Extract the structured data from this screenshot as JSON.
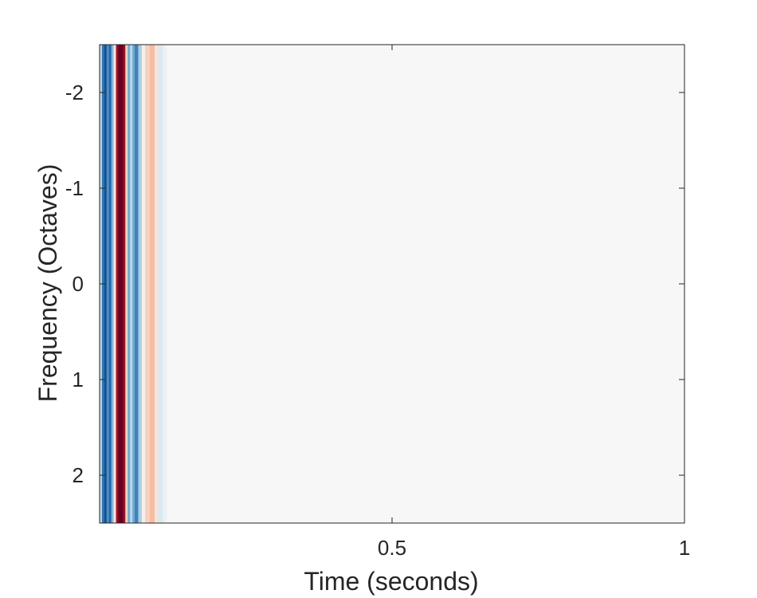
{
  "chart_data": {
    "type": "heatmap",
    "title": "",
    "xlabel": "Time (seconds)",
    "ylabel": "Frequency (Octaves)",
    "xlim": [
      0,
      1
    ],
    "ylim": [
      -2.5,
      2.5
    ],
    "y_reversed": true,
    "x_ticks": [
      {
        "value": 0.5,
        "label": "0.5"
      },
      {
        "value": 1,
        "label": "1"
      }
    ],
    "y_ticks": [
      {
        "value": -2,
        "label": "-2"
      },
      {
        "value": -1,
        "label": "-1"
      },
      {
        "value": 0,
        "label": "0"
      },
      {
        "value": 1,
        "label": "1"
      },
      {
        "value": 2,
        "label": "2"
      }
    ],
    "colormap": "diverging blue-white-red",
    "colors": {
      "negative_extreme": "#053061",
      "negative": "#2166ac",
      "negative_light": "#92c5de",
      "neutral": "#f7f7f7",
      "positive_light": "#f4a582",
      "positive": "#b2182b",
      "positive_extreme": "#67001f"
    },
    "value_range": [
      -1,
      1
    ],
    "bands_constant_across_frequency": true,
    "time_bands": [
      {
        "t0": 0.0,
        "t1": 0.004,
        "v": -0.15
      },
      {
        "t0": 0.004,
        "t1": 0.008,
        "v": -0.55
      },
      {
        "t0": 0.008,
        "t1": 0.012,
        "v": -0.75
      },
      {
        "t0": 0.012,
        "t1": 0.016,
        "v": -0.45
      },
      {
        "t0": 0.016,
        "t1": 0.02,
        "v": -0.6
      },
      {
        "t0": 0.02,
        "t1": 0.024,
        "v": -0.3
      },
      {
        "t0": 0.024,
        "t1": 0.028,
        "v": 0.05
      },
      {
        "t0": 0.028,
        "t1": 0.032,
        "v": 0.7
      },
      {
        "t0": 0.032,
        "t1": 0.04,
        "v": 1.0
      },
      {
        "t0": 0.04,
        "t1": 0.044,
        "v": 0.75
      },
      {
        "t0": 0.044,
        "t1": 0.048,
        "v": 0.1
      },
      {
        "t0": 0.048,
        "t1": 0.052,
        "v": -0.35
      },
      {
        "t0": 0.052,
        "t1": 0.056,
        "v": -0.15
      },
      {
        "t0": 0.056,
        "t1": 0.06,
        "v": -0.35
      },
      {
        "t0": 0.06,
        "t1": 0.066,
        "v": -0.5
      },
      {
        "t0": 0.066,
        "t1": 0.072,
        "v": -0.2
      },
      {
        "t0": 0.072,
        "t1": 0.078,
        "v": 0.03
      },
      {
        "t0": 0.078,
        "t1": 0.086,
        "v": 0.12
      },
      {
        "t0": 0.086,
        "t1": 0.094,
        "v": 0.18
      },
      {
        "t0": 0.094,
        "t1": 0.1,
        "v": 0.06
      },
      {
        "t0": 0.1,
        "t1": 0.108,
        "v": -0.07
      },
      {
        "t0": 0.108,
        "t1": 0.114,
        "v": -0.03
      }
    ]
  }
}
